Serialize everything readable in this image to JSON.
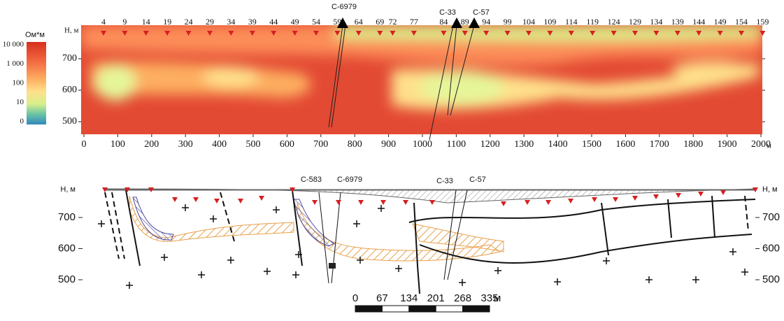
{
  "legend": {
    "title": "Ом*м",
    "labels": [
      "10 000",
      "1 000",
      "100",
      "10",
      "0"
    ]
  },
  "top": {
    "y_label": "Н, м",
    "yticks": [
      700,
      600,
      500
    ],
    "xticks": [
      0,
      100,
      200,
      300,
      400,
      500,
      600,
      700,
      800,
      900,
      1000,
      1100,
      1200,
      1300,
      1400,
      1500,
      1600,
      1700,
      1800,
      1900,
      2000
    ],
    "x_unit": "м",
    "pickets": [
      4,
      9,
      14,
      19,
      24,
      29,
      34,
      39,
      44,
      49,
      54,
      59,
      64,
      69,
      72,
      77,
      84,
      89,
      94,
      99,
      104,
      109,
      114,
      119,
      124,
      129,
      134,
      139,
      144,
      149,
      154,
      159
    ],
    "wells": [
      "C-6979",
      "C-33",
      "C-57"
    ]
  },
  "bottom": {
    "y_label": "Н, м",
    "yticks": [
      700,
      600,
      500
    ],
    "wells": [
      "C-583",
      "C-6979",
      "C-33",
      "C-57"
    ]
  },
  "scale": {
    "labels": [
      0,
      67,
      134,
      201,
      268,
      335
    ],
    "unit": "м"
  }
}
